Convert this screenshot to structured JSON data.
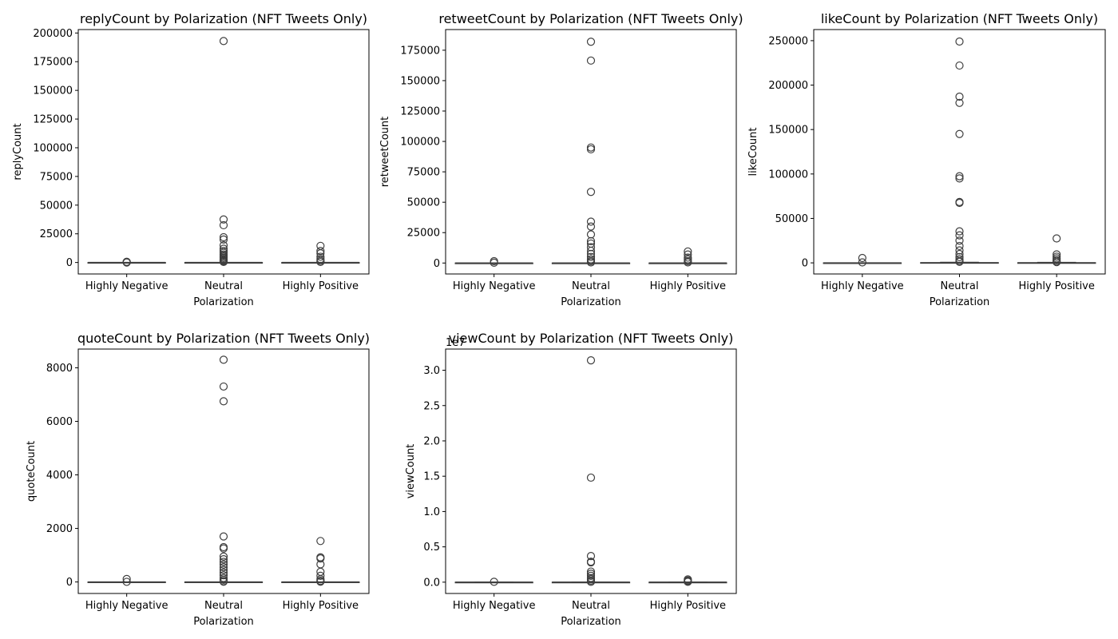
{
  "chart_data": [
    {
      "type": "box",
      "title": "replyCount by Polarization (NFT Tweets Only)",
      "xlabel": "Polarization",
      "ylabel": "replyCount",
      "categories": [
        "Highly Negative",
        "Neutral",
        "Highly Positive"
      ],
      "ylim": [
        -10000,
        203000
      ],
      "yticks": [
        0,
        25000,
        50000,
        75000,
        100000,
        125000,
        150000,
        175000,
        200000
      ],
      "ytick_labels": [
        "0",
        "25000",
        "50000",
        "75000",
        "100000",
        "125000",
        "150000",
        "175000",
        "200000"
      ],
      "offset_label": "",
      "boxes": [
        {
          "median": 0,
          "q1": 0,
          "q3": 0,
          "whisker_low": 0,
          "whisker_high": 0,
          "outliers": [
            10,
            300,
            600
          ]
        },
        {
          "median": 0,
          "q1": 0,
          "q3": 0,
          "whisker_low": 0,
          "whisker_high": 0,
          "outliers": [
            193000,
            37500,
            32500,
            22000,
            20000,
            15000,
            12000,
            10000,
            8500,
            7000,
            6000,
            5000,
            4000,
            3000,
            2000,
            1500,
            1000,
            500
          ]
        },
        {
          "median": 0,
          "q1": 0,
          "q3": 0,
          "whisker_low": 0,
          "whisker_high": 0,
          "outliers": [
            14500,
            10000,
            8000,
            5000,
            3000,
            1500,
            500
          ]
        }
      ]
    },
    {
      "type": "box",
      "title": "retweetCount by Polarization (NFT Tweets Only)",
      "xlabel": "Polarization",
      "ylabel": "retweetCount",
      "categories": [
        "Highly Negative",
        "Neutral",
        "Highly Positive"
      ],
      "ylim": [
        -9000,
        192000
      ],
      "yticks": [
        0,
        25000,
        50000,
        75000,
        100000,
        125000,
        150000,
        175000
      ],
      "ytick_labels": [
        "0",
        "25000",
        "50000",
        "75000",
        "100000",
        "125000",
        "150000",
        "175000"
      ],
      "offset_label": "",
      "boxes": [
        {
          "median": 0,
          "q1": 0,
          "q3": 0,
          "whisker_low": 0,
          "whisker_high": 0,
          "outliers": [
            1500,
            300
          ]
        },
        {
          "median": 0,
          "q1": 0,
          "q3": 0,
          "whisker_low": 0,
          "whisker_high": 0,
          "outliers": [
            182000,
            166500,
            95000,
            93500,
            58500,
            34000,
            30000,
            23500,
            18000,
            16000,
            13000,
            10000,
            7500,
            5000,
            3000,
            1500,
            500
          ]
        },
        {
          "median": 0,
          "q1": 0,
          "q3": 0,
          "whisker_low": 0,
          "whisker_high": 0,
          "outliers": [
            9500,
            7000,
            4500,
            3000,
            1500,
            500
          ]
        }
      ]
    },
    {
      "type": "box",
      "title": "likeCount by Polarization (NFT Tweets Only)",
      "xlabel": "Polarization",
      "ylabel": "likeCount",
      "categories": [
        "Highly Negative",
        "Neutral",
        "Highly Positive"
      ],
      "ylim": [
        -12500,
        262500
      ],
      "yticks": [
        0,
        50000,
        100000,
        150000,
        200000,
        250000
      ],
      "ytick_labels": [
        "0",
        "50000",
        "100000",
        "150000",
        "200000",
        "250000"
      ],
      "offset_label": "",
      "boxes": [
        {
          "median": 0,
          "q1": 0,
          "q3": 0,
          "whisker_low": 0,
          "whisker_high": 0,
          "outliers": [
            5500,
            500
          ]
        },
        {
          "median": 0,
          "q1": 0,
          "q3": 300,
          "whisker_low": 0,
          "whisker_high": 700,
          "outliers": [
            249000,
            222000,
            187000,
            180000,
            145000,
            97500,
            95000,
            68500,
            67500,
            35500,
            31000,
            25000,
            19000,
            14000,
            10000,
            6500,
            4000,
            2000,
            1200
          ]
        },
        {
          "median": 0,
          "q1": 0,
          "q3": 200,
          "whisker_low": 0,
          "whisker_high": 500,
          "outliers": [
            27500,
            9500,
            7000,
            5000,
            3000,
            1500,
            800
          ]
        }
      ]
    },
    {
      "type": "box",
      "title": "quoteCount by Polarization (NFT Tweets Only)",
      "xlabel": "Polarization",
      "ylabel": "quoteCount",
      "categories": [
        "Highly Negative",
        "Neutral",
        "Highly Positive"
      ],
      "ylim": [
        -430,
        8700
      ],
      "yticks": [
        0,
        2000,
        4000,
        6000,
        8000
      ],
      "ytick_labels": [
        "0",
        "2000",
        "4000",
        "6000",
        "8000"
      ],
      "offset_label": "",
      "boxes": [
        {
          "median": 0,
          "q1": 0,
          "q3": 0,
          "whisker_low": 0,
          "whisker_high": 0,
          "outliers": [
            110,
            5
          ]
        },
        {
          "median": 0,
          "q1": 0,
          "q3": 0,
          "whisker_low": 0,
          "whisker_high": 0,
          "outliers": [
            8300,
            7300,
            6750,
            1700,
            1300,
            1250,
            950,
            850,
            750,
            650,
            550,
            450,
            350,
            250,
            150,
            80,
            30,
            10
          ]
        },
        {
          "median": 0,
          "q1": 0,
          "q3": 0,
          "whisker_low": 0,
          "whisker_high": 0,
          "outliers": [
            1530,
            920,
            880,
            660,
            380,
            230,
            100,
            40,
            10
          ]
        }
      ]
    },
    {
      "type": "box",
      "title": "viewCount by Polarization (NFT Tweets Only)",
      "xlabel": "Polarization",
      "ylabel": "viewCount",
      "categories": [
        "Highly Negative",
        "Neutral",
        "Highly Positive"
      ],
      "ylim": [
        -1600000,
        33000000
      ],
      "yticks": [
        0,
        5000000,
        10000000,
        15000000,
        20000000,
        25000000,
        30000000
      ],
      "ytick_labels": [
        "0.0",
        "0.5",
        "1.0",
        "1.5",
        "2.0",
        "2.5",
        "3.0"
      ],
      "offset_label": "1e7",
      "boxes": [
        {
          "median": 0,
          "q1": 0,
          "q3": 0,
          "whisker_low": 0,
          "whisker_high": 0,
          "outliers": [
            50000
          ]
        },
        {
          "median": 0,
          "q1": 0,
          "q3": 0,
          "whisker_low": 0,
          "whisker_high": 0,
          "outliers": [
            31400000,
            14800000,
            3700000,
            2900000,
            2800000,
            1500000,
            1200000,
            900000,
            600000,
            400000,
            200000,
            50000
          ]
        },
        {
          "median": 0,
          "q1": 0,
          "q3": 0,
          "whisker_low": 0,
          "whisker_high": 0,
          "outliers": [
            400000,
            250000,
            150000,
            50000
          ]
        }
      ]
    }
  ]
}
